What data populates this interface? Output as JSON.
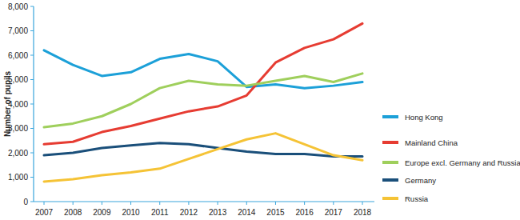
{
  "chart_data": {
    "type": "line",
    "y_label": "Number of pupils",
    "categories": [
      "2007",
      "2008",
      "2009",
      "2010",
      "2011",
      "2012",
      "2013",
      "2014",
      "2015",
      "2016",
      "2017",
      "2018"
    ],
    "series": [
      {
        "name": "Hong Kong",
        "color": "#1ca0d8",
        "values": [
          6200,
          5600,
          5150,
          5300,
          5850,
          6050,
          5750,
          4700,
          4800,
          4650,
          4750,
          4900
        ]
      },
      {
        "name": "Mainland China",
        "color": "#e63c32",
        "values": [
          2350,
          2450,
          2850,
          3100,
          3400,
          3700,
          3900,
          4350,
          5700,
          6300,
          6650,
          7300
        ]
      },
      {
        "name": "Europe excl. Germany and Russia",
        "color": "#9fcf5c",
        "values": [
          3050,
          3200,
          3500,
          4000,
          4650,
          4950,
          4800,
          4750,
          4950,
          5150,
          4900,
          5250
        ]
      },
      {
        "name": "Germany",
        "color": "#1a4f7a",
        "values": [
          1900,
          2000,
          2200,
          2300,
          2400,
          2350,
          2200,
          2050,
          1950,
          1950,
          1850,
          1850
        ]
      },
      {
        "name": "Russia",
        "color": "#f5c336",
        "values": [
          820,
          920,
          1080,
          1200,
          1350,
          1750,
          2150,
          2550,
          2800,
          2350,
          1900,
          1700
        ]
      }
    ],
    "ylim": [
      0,
      8000
    ],
    "yticks": [
      0,
      {
        "value": 1000,
        "label": "1,000"
      },
      {
        "value": 2000,
        "label": "2,000"
      },
      {
        "value": 3000,
        "label": "3,000"
      },
      {
        "value": 4000,
        "label": "4,000"
      },
      {
        "value": 5000,
        "label": "5,000"
      },
      {
        "value": 6000,
        "label": "6,000"
      },
      {
        "value": 7000,
        "label": "7,000"
      },
      {
        "value": 8000,
        "label": "8,000"
      }
    ],
    "grid": false,
    "legend": "right"
  }
}
